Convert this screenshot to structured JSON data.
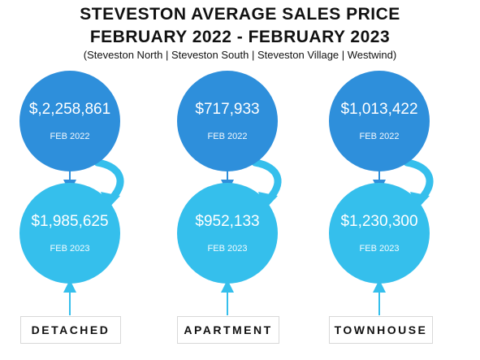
{
  "title_line1": "STEVESTON AVERAGE SALES PRICE",
  "title_line2": "FEBRUARY 2022 - FEBRUARY 2023",
  "subtitle": "(Steveston North | Steveston South | Steveston Village | Westwind)",
  "columns": [
    {
      "category": "DETACHED",
      "feb2022_price": "$,2,258,861",
      "feb2022_label": "FEB 2022",
      "feb2023_price": "$1,985,625",
      "feb2023_label": "FEB 2023"
    },
    {
      "category": "APARTMENT",
      "feb2022_price": "$717,933",
      "feb2022_label": "FEB 2022",
      "feb2023_price": "$952,133",
      "feb2023_label": "FEB 2023"
    },
    {
      "category": "TOWNHOUSE",
      "feb2022_price": "$1,013,422",
      "feb2022_label": "FEB 2022",
      "feb2023_price": "$1,230,300",
      "feb2023_label": "FEB 2023"
    }
  ],
  "colors": {
    "feb2022_circle": "#2e8fdb",
    "feb2023_circle": "#35bfec",
    "connector": "#2e8fdb",
    "curved_arrow": "#35bfec"
  }
}
